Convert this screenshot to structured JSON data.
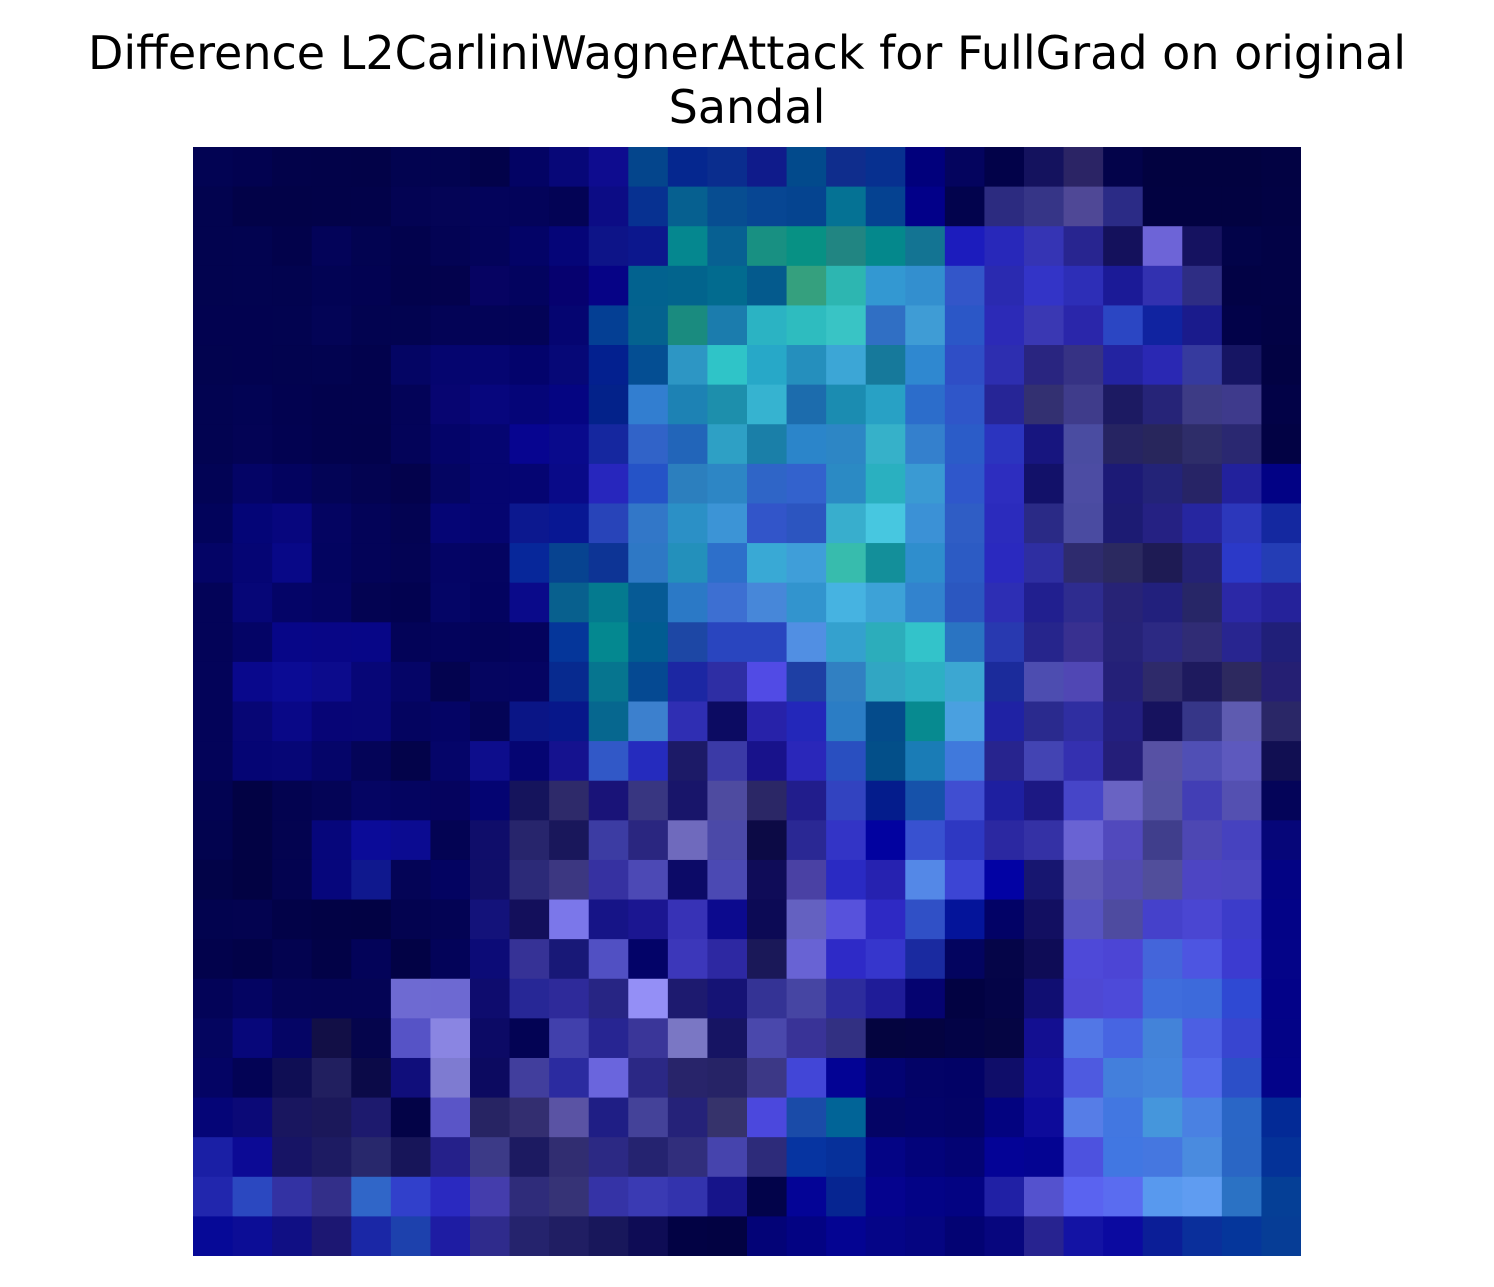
{
  "chart_data": {
    "type": "heatmap",
    "title_lines": [
      "Difference L2CarliniWagnerAttack for FullGrad on original",
      "Sandal"
    ],
    "xlabel": "",
    "ylabel": "",
    "axes_visible": false,
    "grid": false,
    "legend": "none",
    "rows": 28,
    "cols": 28,
    "cells": [
      [
        "#020353",
        "#020250",
        "#02024a",
        "#020249",
        "#020248",
        "#020350",
        "#020350",
        "#02024a",
        "#030364",
        "#070778",
        "#0e0c8f",
        "#04458c",
        "#05278f",
        "#0a2d8e",
        "#0f1b8b",
        "#024a8c",
        "#0f2d8d",
        "#073090",
        "#01007c",
        "#04045e",
        "#020249",
        "#14125e",
        "#2b2465",
        "#03034a",
        "#020240",
        "#020240",
        "#020240",
        "#020243"
      ],
      [
        "#02034f",
        "#020248",
        "#020248",
        "#020249",
        "#02024a",
        "#030353",
        "#040456",
        "#03035b",
        "#03035a",
        "#030355",
        "#0c0c85",
        "#073191",
        "#066090",
        "#074d91",
        "#074693",
        "#054490",
        "#057294",
        "#054291",
        "#020089",
        "#02034d",
        "#2c2b80",
        "#363587",
        "#4f4896",
        "#2b2b86",
        "#020241",
        "#020241",
        "#020241",
        "#020244"
      ],
      [
        "#02034f",
        "#020350",
        "#02024b",
        "#030359",
        "#020351",
        "#02024d",
        "#030354",
        "#03035a",
        "#030367",
        "#050578",
        "#0d1488",
        "#0c178d",
        "#05878f",
        "#076092",
        "#189082",
        "#079184",
        "#218582",
        "#04888c",
        "#137493",
        "#1c1cbd",
        "#2828ba",
        "#3534b4",
        "#282590",
        "#14115c",
        "#6d64d7",
        "#151260",
        "#020349",
        "#020246"
      ],
      [
        "#02034f",
        "#020350",
        "#02034f",
        "#020354",
        "#020252",
        "#02024c",
        "#03024d",
        "#060362",
        "#03035f",
        "#06016f",
        "#060386",
        "#02628f",
        "#02648d",
        "#026b8f",
        "#045a8d",
        "#35a07e",
        "#2db6b1",
        "#3398d2",
        "#338fcf",
        "#3356c9",
        "#2a2ab0",
        "#3334c7",
        "#2d2eb7",
        "#1b1a97",
        "#3231b0",
        "#2e2d84",
        "#020245",
        "#020246"
      ],
      [
        "#020250",
        "#020250",
        "#020350",
        "#030456",
        "#020350",
        "#020350",
        "#030356",
        "#030357",
        "#030357",
        "#050571",
        "#043f94",
        "#04628f",
        "#1a8b7f",
        "#1b7cad",
        "#2bb3c3",
        "#2ebcbf",
        "#39c4c5",
        "#306fc4",
        "#3f9cd5",
        "#2b57c7",
        "#2c2ab7",
        "#3a38b3",
        "#2a26aa",
        "#2b46c3",
        "#1023a0",
        "#1a1b8c",
        "#020249",
        "#020245"
      ],
      [
        "#02034f",
        "#020250",
        "#02034f",
        "#020350",
        "#02024d",
        "#040564",
        "#05056f",
        "#050571",
        "#03036c",
        "#060877",
        "#03208f",
        "#044e93",
        "#2d96c4",
        "#2fc4c8",
        "#27a8c8",
        "#258fbd",
        "#3ca6d6",
        "#16799b",
        "#2f88d0",
        "#2f4ec6",
        "#2d2eb0",
        "#292580",
        "#363284",
        "#2323a1",
        "#2a28b3",
        "#363a9e",
        "#161563",
        "#020243"
      ],
      [
        "#020351",
        "#020354",
        "#020250",
        "#02024d",
        "#02024d",
        "#030358",
        "#070571",
        "#07067d",
        "#050578",
        "#050582",
        "#03228a",
        "#327ed0",
        "#1d82b4",
        "#1d8fac",
        "#36b3d0",
        "#1c6cad",
        "#1b8cb1",
        "#28a1c5",
        "#2c6dcb",
        "#2f56c9",
        "#262596",
        "#333071",
        "#3f3c8b",
        "#1c1a62",
        "#262478",
        "#3d3b85",
        "#3e3a8c",
        "#020247"
      ],
      [
        "#020351",
        "#030355",
        "#020251",
        "#02024d",
        "#02024c",
        "#030359",
        "#040469",
        "#050571",
        "#070590",
        "#090a8c",
        "#15279f",
        "#3163c8",
        "#2265b9",
        "#2ea0c5",
        "#1a7fa8",
        "#2b85ca",
        "#2d86c5",
        "#36b1c9",
        "#3480cd",
        "#2b5cc8",
        "#2b34bf",
        "#17157f",
        "#4a4ca1",
        "#262462",
        "#28265c",
        "#2e2d69",
        "#2a2871",
        "#020244"
      ],
      [
        "#020355",
        "#040466",
        "#03035f",
        "#030456",
        "#030351",
        "#03024c",
        "#040562",
        "#050570",
        "#050572",
        "#090a88",
        "#2726bd",
        "#2553c7",
        "#2c7fbe",
        "#2d86c5",
        "#2f65c7",
        "#3362cd",
        "#2b8ac4",
        "#2ab0c0",
        "#3a9ad3",
        "#2f57cb",
        "#2d2dbf",
        "#121169",
        "#4c4ca3",
        "#1c1a76",
        "#232378",
        "#272466",
        "#22219c",
        "#020285"
      ],
      [
        "#02035b",
        "#040577",
        "#07067e",
        "#040461",
        "#030358",
        "#030352",
        "#050575",
        "#050570",
        "#0c188f",
        "#081793",
        "#2844b9",
        "#3277c8",
        "#2b90c6",
        "#3c94d6",
        "#3255c9",
        "#2c55c0",
        "#38aecd",
        "#47c7e0",
        "#3b91d6",
        "#2f5dc5",
        "#2b2bbd",
        "#2a2a86",
        "#4a4ba1",
        "#1c1b73",
        "#252183",
        "#2626a0",
        "#2c37bb",
        "#1428a0"
      ],
      [
        "#040466",
        "#050574",
        "#080887",
        "#030460",
        "#030358",
        "#030354",
        "#040465",
        "#040461",
        "#07279a",
        "#074390",
        "#0d3495",
        "#2e78c5",
        "#2390bb",
        "#2d6fca",
        "#39a9d5",
        "#3f9ed9",
        "#37bcad",
        "#138f9a",
        "#2f8ecd",
        "#2c5bc4",
        "#2a29bf",
        "#2e2ea1",
        "#2e2b6e",
        "#2b2960",
        "#1e1b54",
        "#242274",
        "#2b39c8",
        "#243db5"
      ],
      [
        "#030358",
        "#060677",
        "#040467",
        "#040462",
        "#030352",
        "#020250",
        "#040566",
        "#030360",
        "#0a0a8a",
        "#08608e",
        "#047a8f",
        "#065a95",
        "#2b79c6",
        "#3d6fd2",
        "#4787d9",
        "#3294ce",
        "#46b3e1",
        "#3da2d7",
        "#3283ce",
        "#2b57c0",
        "#2d2eb4",
        "#211f8f",
        "#2e2c8f",
        "#272376",
        "#22207d",
        "#272667",
        "#2b28a6",
        "#25229a"
      ],
      [
        "#030358",
        "#040466",
        "#070688",
        "#080686",
        "#070687",
        "#030358",
        "#03035c",
        "#030359",
        "#04035d",
        "#05369a",
        "#048890",
        "#015c91",
        "#1d47a5",
        "#2945bf",
        "#2945bf",
        "#518fe3",
        "#34a1ce",
        "#2cadbb",
        "#33c3ca",
        "#2a74c2",
        "#2839b0",
        "#26258c",
        "#383090",
        "#262378",
        "#2c2983",
        "#302c75",
        "#282590",
        "#201f79"
      ],
      [
        "#030359",
        "#09088c",
        "#0b0b94",
        "#0c0b8c",
        "#070677",
        "#050567",
        "#03034f",
        "#050560",
        "#050462",
        "#072a8f",
        "#06758f",
        "#054992",
        "#1c27a3",
        "#2e2ea4",
        "#514be5",
        "#1e3fa4",
        "#3180c2",
        "#31a6c3",
        "#2db0c4",
        "#3ca7d2",
        "#1b2b9b",
        "#4d4db0",
        "#5047b4",
        "#242078",
        "#2e2a6a",
        "#1e1a5e",
        "#2d295f",
        "#251f73"
      ],
      [
        "#030359",
        "#070675",
        "#090887",
        "#070576",
        "#070676",
        "#040460",
        "#040465",
        "#040456",
        "#0a1586",
        "#07178a",
        "#06678f",
        "#3c80ce",
        "#2f2eb3",
        "#0c0b62",
        "#2722a9",
        "#2327ba",
        "#2b7dc5",
        "#044b8b",
        "#078a90",
        "#4aa0e0",
        "#1f22a4",
        "#2a2a8e",
        "#2f2ea1",
        "#231f80",
        "#16125e",
        "#363688",
        "#5e5bb0",
        "#2a2767"
      ],
      [
        "#030359",
        "#050574",
        "#060676",
        "#050569",
        "#040458",
        "#03034a",
        "#050569",
        "#0d0d8c",
        "#050572",
        "#15128f",
        "#3158c7",
        "#252bbe",
        "#1c1a67",
        "#3b3aa6",
        "#18128b",
        "#2a27ba",
        "#294fc0",
        "#034f89",
        "#1a7cb6",
        "#4079dc",
        "#27248e",
        "#4344b3",
        "#3430b0",
        "#241e79",
        "#5751a4",
        "#504fb5",
        "#5d59be",
        "#110f52"
      ],
      [
        "#020352",
        "#020244",
        "#030350",
        "#040456",
        "#050563",
        "#040460",
        "#05035e",
        "#040472",
        "#15145c",
        "#2e2a6a",
        "#191378",
        "#383681",
        "#18156a",
        "#4e4ba0",
        "#2b2766",
        "#211d8c",
        "#3243c0",
        "#041c8c",
        "#1652aa",
        "#404ed1",
        "#1e1fa0",
        "#1c1883",
        "#4645c8",
        "#6963c3",
        "#5452a2",
        "#423eb5",
        "#5450b1",
        "#040459"
      ],
      [
        "#02034f",
        "#020244",
        "#030350",
        "#06067b",
        "#0b0b98",
        "#0b0b91",
        "#030353",
        "#0f0d6a",
        "#27256c",
        "#19175b",
        "#3c3ca3",
        "#2a2680",
        "#6f6abd",
        "#4b49a8",
        "#0c0a45",
        "#2a2894",
        "#3334c6",
        "#0202a0",
        "#3851d0",
        "#2e38c2",
        "#2b28a1",
        "#3431a5",
        "#6963d3",
        "#5149bd",
        "#403e8c",
        "#4d47b3",
        "#4642bf",
        "#060679"
      ],
      [
        "#020348",
        "#020243",
        "#030350",
        "#06067c",
        "#0f188e",
        "#040456",
        "#030361",
        "#100e68",
        "#2c2a78",
        "#3c3781",
        "#3631a1",
        "#4c49b5",
        "#0c0a67",
        "#4b49b3",
        "#0f0c58",
        "#4a41a4",
        "#2a2ac3",
        "#2622b0",
        "#5488e7",
        "#3c45d4",
        "#0202a4",
        "#171670",
        "#5d58b6",
        "#514bb0",
        "#514e9b",
        "#4d45c3",
        "#4b46c1",
        "#030384"
      ],
      [
        "#02034f",
        "#030350",
        "#020248",
        "#020245",
        "#020244",
        "#030350",
        "#030354",
        "#13127a",
        "#130f5b",
        "#7b77ea",
        "#161487",
        "#1b1691",
        "#3732b6",
        "#0c0a8e",
        "#0c0a55",
        "#6461c1",
        "#5752dc",
        "#2e29c4",
        "#3050c6",
        "#04149a",
        "#020266",
        "#120f61",
        "#5653c0",
        "#4e4ba0",
        "#4541cb",
        "#4a46d2",
        "#3c3cca",
        "#030387"
      ],
      [
        "#02024c",
        "#020248",
        "#030350",
        "#020247",
        "#030359",
        "#020245",
        "#030359",
        "#0c0b77",
        "#363296",
        "#181877",
        "#5150c3",
        "#030368",
        "#3c37ba",
        "#2d28a2",
        "#1a1858",
        "#6863d4",
        "#2e2ac7",
        "#3636cc",
        "#1a2aa0",
        "#03045f",
        "#050548",
        "#0e0c56",
        "#4e49d8",
        "#4c45d5",
        "#4465da",
        "#4d55e1",
        "#3c3bd0",
        "#040488"
      ],
      [
        "#030358",
        "#040462",
        "#040456",
        "#040455",
        "#040455",
        "#6e6ad2",
        "#6d69d2",
        "#0e0c6e",
        "#272796",
        "#2e2a9a",
        "#272584",
        "#948ff6",
        "#1d1a6f",
        "#151375",
        "#343395",
        "#4645a3",
        "#2d2c9d",
        "#1f1c98",
        "#050370",
        "#020242",
        "#040447",
        "#100e72",
        "#4e48d4",
        "#4d4ad9",
        "#3f6ddc",
        "#3d6adb",
        "#2f49d3",
        "#030288"
      ],
      [
        "#04055f",
        "#07077a",
        "#050565",
        "#120f46",
        "#05054c",
        "#5653c6",
        "#8a85e2",
        "#0c0a65",
        "#030354",
        "#4140ac",
        "#272592",
        "#3a3699",
        "#7a77c4",
        "#161463",
        "#4a48ac",
        "#393397",
        "#323082",
        "#04043f",
        "#040341",
        "#030346",
        "#050543",
        "#130f91",
        "#5277e6",
        "#4765e2",
        "#4383d9",
        "#4c5fe3",
        "#3845d0",
        "#030387"
      ],
      [
        "#040464",
        "#030355",
        "#0f0e54",
        "#211f5f",
        "#0b0a48",
        "#100e7b",
        "#7e7bd1",
        "#0c0a60",
        "#413e9d",
        "#2b2ba0",
        "#6a65dd",
        "#2b2885",
        "#28246a",
        "#262366",
        "#3c3886",
        "#4246d7",
        "#030394",
        "#030372",
        "#030367",
        "#020266",
        "#0f0d69",
        "#13109a",
        "#4e5ae0",
        "#437fdc",
        "#4485dc",
        "#5269e9",
        "#2c4fc8",
        "#030389"
      ],
      [
        "#050577",
        "#0b0977",
        "#19165f",
        "#1b185a",
        "#1d1a6e",
        "#030347",
        "#5a55c7",
        "#272463",
        "#332e70",
        "#5a53a4",
        "#1f1e85",
        "#444299",
        "#252279",
        "#36336b",
        "#4b48dd",
        "#1a4ba8",
        "#016497",
        "#040465",
        "#030369",
        "#030366",
        "#030380",
        "#0d0b9a",
        "#567de7",
        "#4277e1",
        "#4596dc",
        "#4a81e2",
        "#2a66c6",
        "#032a96"
      ],
      [
        "#1a1fa5",
        "#0c0a95",
        "#171465",
        "#1d1b62",
        "#28286c",
        "#171559",
        "#25208a",
        "#3c3a87",
        "#1c1a61",
        "#312d71",
        "#2c2984",
        "#252370",
        "#312e7c",
        "#4644ad",
        "#2d2b7a",
        "#0634a1",
        "#06309a",
        "#040485",
        "#03037a",
        "#030373",
        "#040396",
        "#040492",
        "#4d52df",
        "#4177e2",
        "#4577e0",
        "#4a8bdf",
        "#2a66c5",
        "#043298"
      ],
      [
        "#2126ad",
        "#2b48c0",
        "#3332a3",
        "#332f89",
        "#3066c8",
        "#3140cb",
        "#2a29c0",
        "#443dac",
        "#2f2c7a",
        "#363376",
        "#3533a6",
        "#3a3ab3",
        "#3333ad",
        "#16148a",
        "#02034a",
        "#040496",
        "#062591",
        "#05038e",
        "#030386",
        "#030382",
        "#2020a5",
        "#5452ce",
        "#5a63f0",
        "#5a6cf0",
        "#5899ee",
        "#5f9cf1",
        "#2b72c4",
        "#053f96"
      ],
      [
        "#060997",
        "#0c0d96",
        "#100f84",
        "#1c1772",
        "#1a27a6",
        "#1d41ad",
        "#1e1ca3",
        "#2f2b8c",
        "#25236d",
        "#201e63",
        "#18175b",
        "#0e0c55",
        "#020244",
        "#020242",
        "#030377",
        "#030383",
        "#040492",
        "#050587",
        "#050581",
        "#030373",
        "#07067e",
        "#272390",
        "#1313a4",
        "#0b0aa0",
        "#0b1e97",
        "#0a2f9b",
        "#05369b",
        "#063d96"
      ]
    ]
  }
}
